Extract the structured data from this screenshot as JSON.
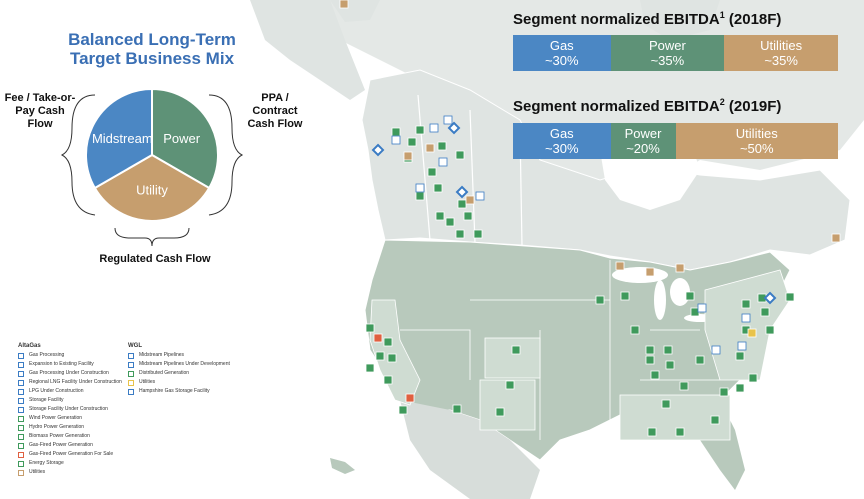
{
  "mix": {
    "title_line1": "Balanced Long-Term",
    "title_line2": "Target Business Mix",
    "slices": [
      {
        "label": "Midstream",
        "share": 0.3333,
        "color": "#4b87c4"
      },
      {
        "label": "Power",
        "share": 0.3333,
        "color": "#5e9277"
      },
      {
        "label": "Utility",
        "share": 0.3334,
        "color": "#c69e6e"
      }
    ],
    "left_label": "Fee / Take-or- Pay Cash Flow",
    "right_label": "PPA / Contract Cash Flow",
    "bottom_label": "Regulated Cash Flow"
  },
  "segments": [
    {
      "title": "Segment normalized EBITDA",
      "sup": "1",
      "suffix": "(2018F)",
      "parts": [
        {
          "name": "Gas",
          "value": "~30%",
          "color": "#4b87c4",
          "share": 0.3
        },
        {
          "name": "Power",
          "value": "~35%",
          "color": "#5e9277",
          "share": 0.35
        },
        {
          "name": "Utilities",
          "value": "~35%",
          "color": "#c69e6e",
          "share": 0.35
        }
      ]
    },
    {
      "title": "Segment normalized EBITDA",
      "sup": "2",
      "suffix": "(2019F)",
      "parts": [
        {
          "name": "Gas",
          "value": "~30%",
          "color": "#4b87c4",
          "share": 0.3
        },
        {
          "name": "Power",
          "value": "~20%",
          "color": "#5e9277",
          "share": 0.2
        },
        {
          "name": "Utilities",
          "value": "~50%",
          "color": "#c69e6e",
          "share": 0.5
        }
      ]
    }
  ],
  "legend_altagas": {
    "header": "AltaGas",
    "items": [
      "Gas Processing",
      "Expansion to Existing Facility",
      "Gas Processing Under Construction",
      "Regional LNG Facility Under Construction",
      "LPG Under Construction",
      "Storage Facility",
      "Storage Facility Under Construction",
      "Wind Power Generation",
      "Hydro Power Generation",
      "Biomass Power Generation",
      "Gas-Fired Power Generation",
      "Gas-Fired Power Generation For Sale",
      "Energy Storage",
      "Utilities"
    ]
  },
  "legend_wgl": {
    "header": "WGL",
    "items": [
      "Midstream Pipelines",
      "Midstream Pipelines Under Development",
      "Distributed Generation",
      "Utilities",
      "Hampshire Gas Storage Facility"
    ]
  },
  "colors": {
    "land_us": "#b8c9bc",
    "land_canada": "#dfe4e2",
    "water": "#ffffff",
    "marker_green": "#3f9a5c",
    "marker_blue": "#3b7cc4",
    "marker_tan": "#c69e6e",
    "marker_red": "#e06040",
    "marker_yellow": "#e8c34a"
  },
  "map_markers": [
    {
      "type": "green",
      "count": 52
    },
    {
      "type": "blue",
      "count": 14
    },
    {
      "type": "tan",
      "count": 8
    },
    {
      "type": "red",
      "count": 2
    },
    {
      "type": "yellow",
      "count": 1
    }
  ]
}
